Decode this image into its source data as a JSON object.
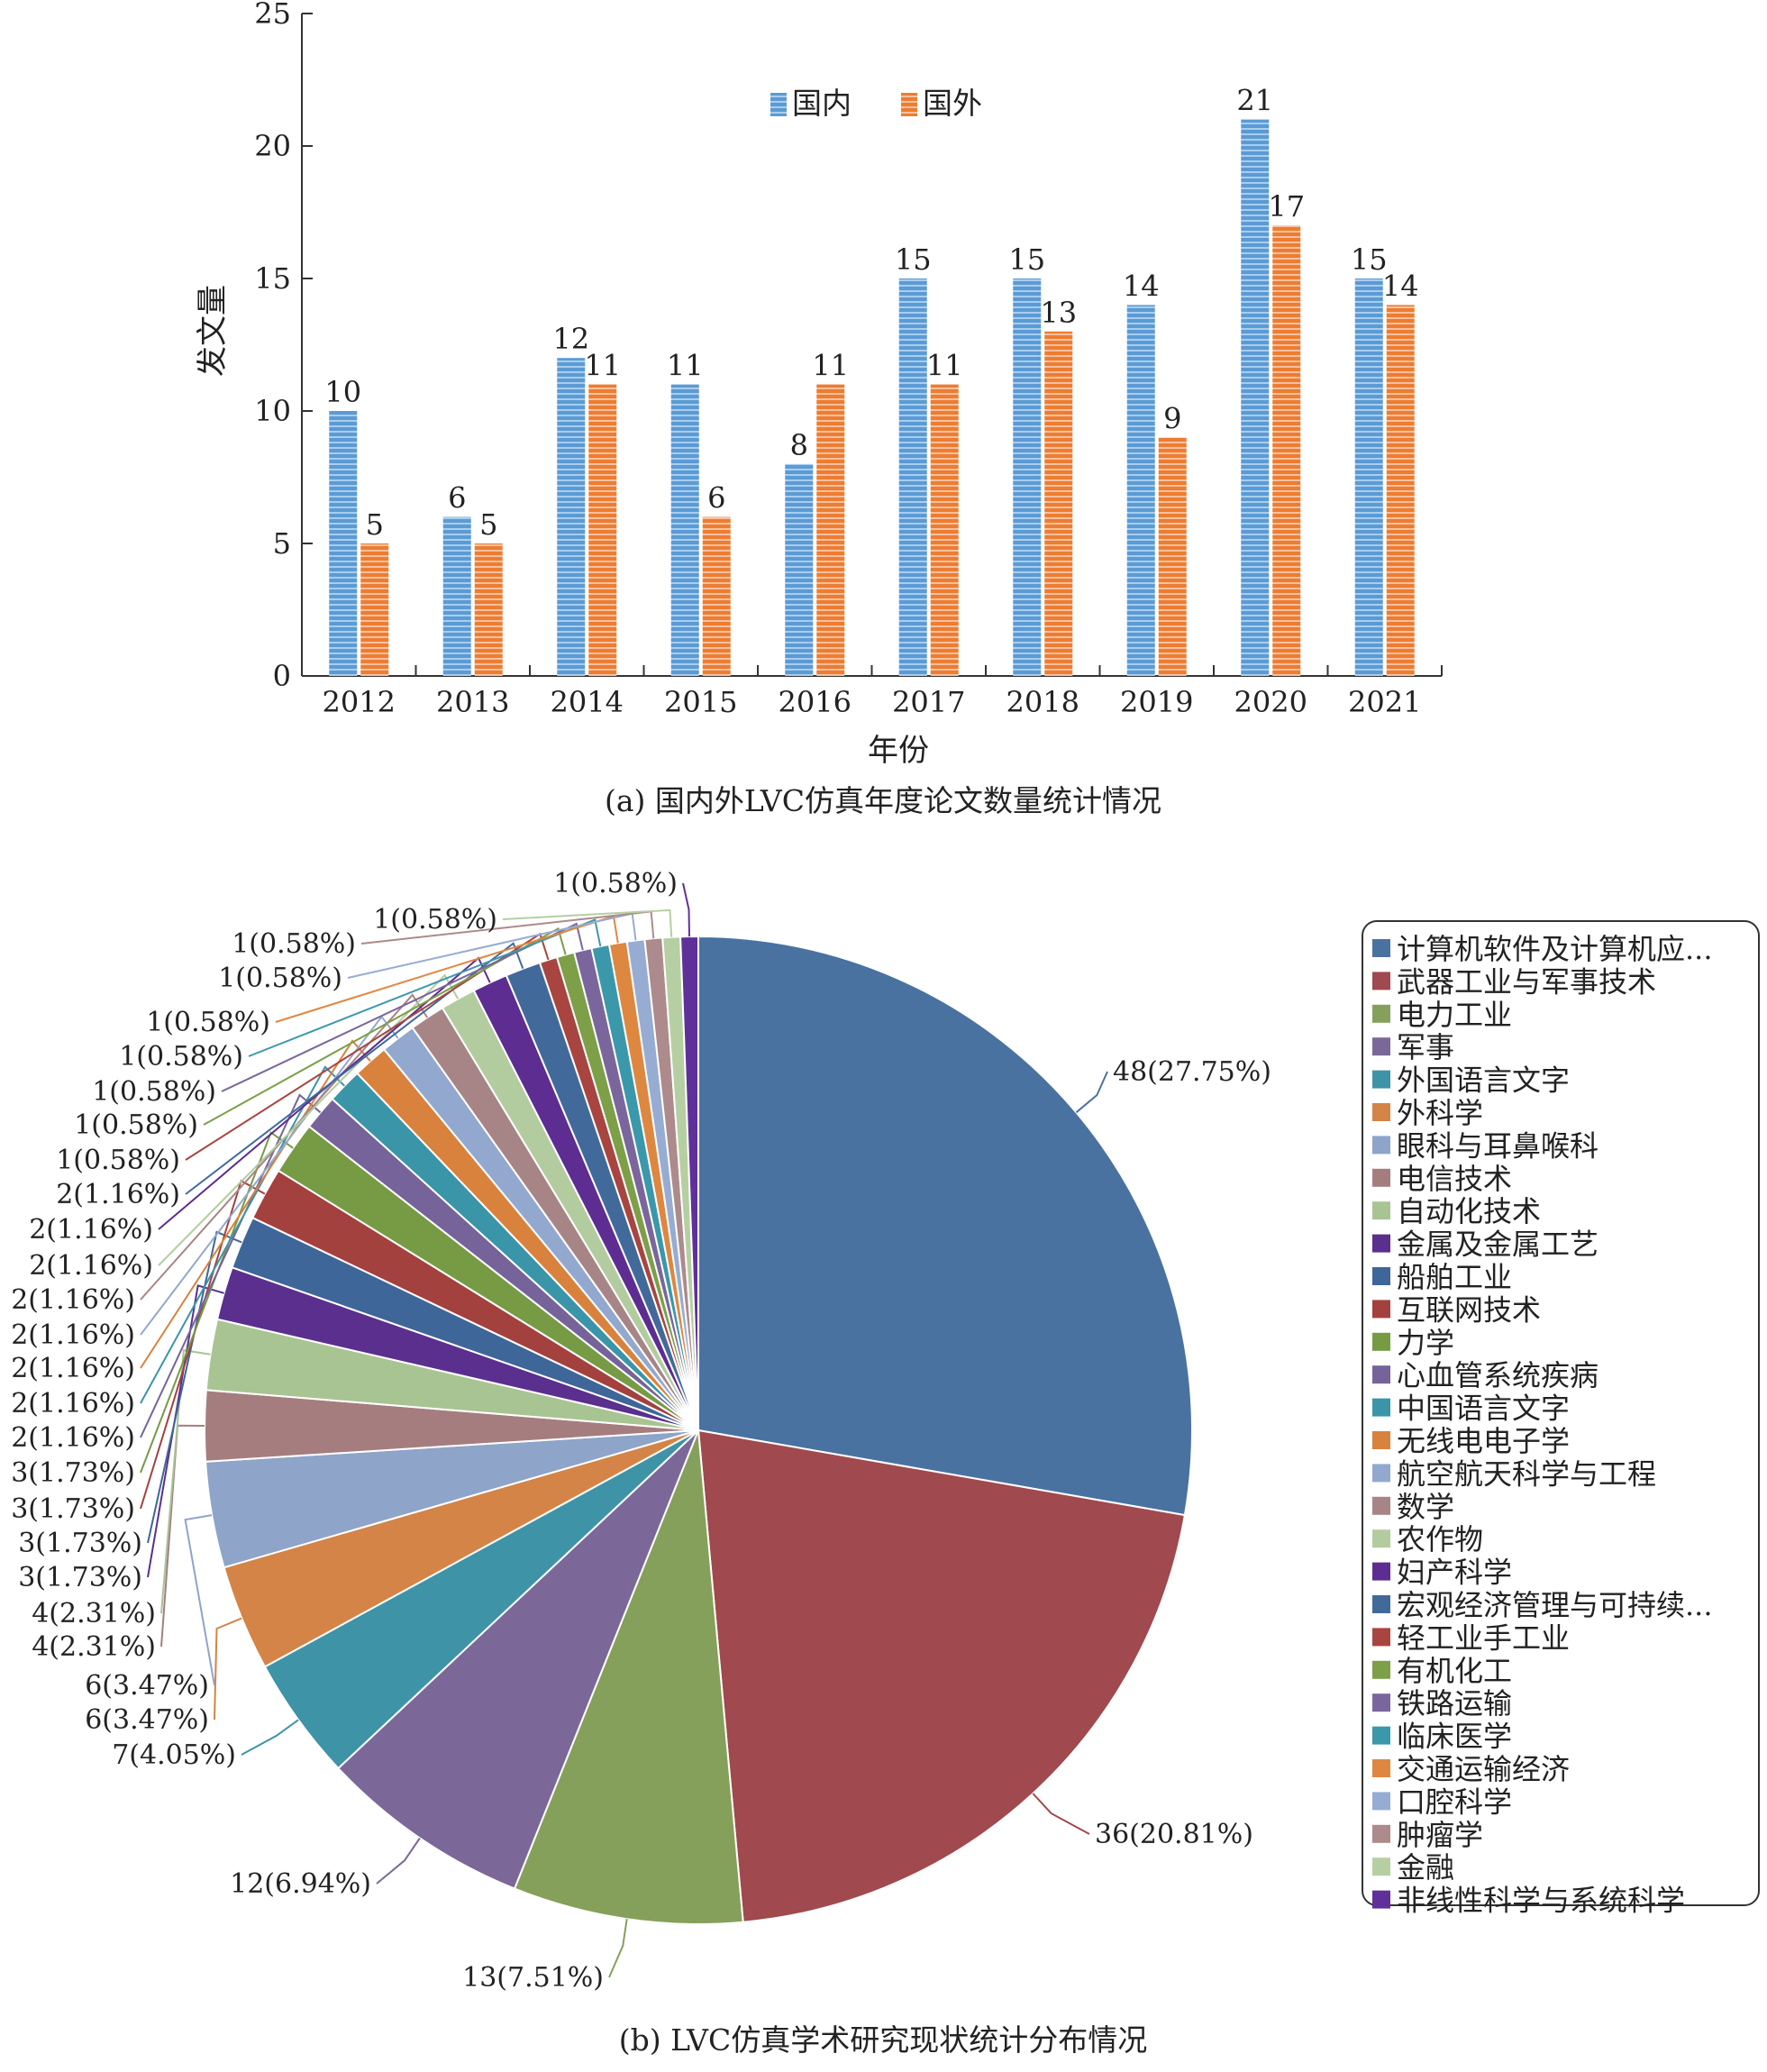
{
  "chart_data": [
    {
      "type": "bar",
      "caption": "(a) 国内外LVC仿真年度论文数量统计情况",
      "xlabel": "年份",
      "ylabel": "发文量",
      "ylim": [
        0,
        25
      ],
      "yticks": [
        0,
        5,
        10,
        15,
        20,
        25
      ],
      "categories": [
        "2012",
        "2013",
        "2014",
        "2015",
        "2016",
        "2017",
        "2018",
        "2019",
        "2020",
        "2021"
      ],
      "series": [
        {
          "name": "国内",
          "color": "#5b9bd5",
          "values": [
            10,
            6,
            12,
            11,
            8,
            15,
            15,
            14,
            21,
            15
          ]
        },
        {
          "name": "国外",
          "color": "#ed7d31",
          "values": [
            5,
            5,
            11,
            6,
            11,
            11,
            13,
            9,
            17,
            14
          ]
        }
      ],
      "legend_position": "top-center",
      "grid": false
    },
    {
      "type": "pie",
      "caption": "(b) LVC仿真学术研究现状统计分布情况",
      "legend_position": "right",
      "slices": [
        {
          "label": "计算机软件及计算机应...",
          "value": 48,
          "text": "48(27.75%)",
          "color": "#4a72a0"
        },
        {
          "label": "武器工业与军事技术",
          "value": 36,
          "text": "36(20.81%)",
          "color": "#a0494e"
        },
        {
          "label": "电力工业",
          "value": 13,
          "text": "13(7.51%)",
          "color": "#85a05a"
        },
        {
          "label": "军事",
          "value": 12,
          "text": "12(6.94%)",
          "color": "#7b6898"
        },
        {
          "label": "外国语言文字",
          "value": 7,
          "text": "7(4.05%)",
          "color": "#3f93a6"
        },
        {
          "label": "外科学",
          "value": 6,
          "text": "6(3.47%)",
          "color": "#d48446"
        },
        {
          "label": "眼科与耳鼻喉科",
          "value": 6,
          "text": "6(3.47%)",
          "color": "#8ea4c8"
        },
        {
          "label": "电信技术",
          "value": 4,
          "text": "4(2.31%)",
          "color": "#a67d7f"
        },
        {
          "label": "自动化技术",
          "value": 4,
          "text": "4(2.31%)",
          "color": "#a9c493"
        },
        {
          "label": "金属及金属工艺",
          "value": 3,
          "text": "3(1.73%)",
          "color": "#5a2f8e"
        },
        {
          "label": "船舶工业",
          "value": 3,
          "text": "3(1.73%)",
          "color": "#3e6698"
        },
        {
          "label": "互联网技术",
          "value": 3,
          "text": "3(1.73%)",
          "color": "#a3413f"
        },
        {
          "label": "力学",
          "value": 3,
          "text": "3(1.73%)",
          "color": "#779a45"
        },
        {
          "label": "心血管系统疾病",
          "value": 2,
          "text": "2(1.16%)",
          "color": "#76639a"
        },
        {
          "label": "中国语言文字",
          "value": 2,
          "text": "2(1.16%)",
          "color": "#3a95a8"
        },
        {
          "label": "无线电电子学",
          "value": 2,
          "text": "2(1.16%)",
          "color": "#d8823d"
        },
        {
          "label": "航空航天科学与工程",
          "value": 2,
          "text": "2(1.16%)",
          "color": "#93a8cf"
        },
        {
          "label": "数学",
          "value": 2,
          "text": "2(1.16%)",
          "color": "#a78586"
        },
        {
          "label": "农作物",
          "value": 2,
          "text": "2(1.16%)",
          "color": "#b3cc9f"
        },
        {
          "label": "妇产科学",
          "value": 2,
          "text": "2(1.16%)",
          "color": "#5d2d91"
        },
        {
          "label": "宏观经济管理与可持续...",
          "value": 2,
          "text": "2(1.16%)",
          "color": "#416a9b"
        },
        {
          "label": "轻工业手工业",
          "value": 1,
          "text": "1(0.58%)",
          "color": "#a84540"
        },
        {
          "label": "有机化工",
          "value": 1,
          "text": "1(0.58%)",
          "color": "#7c9f48"
        },
        {
          "label": "铁路运输",
          "value": 1,
          "text": "1(0.58%)",
          "color": "#7a669c"
        },
        {
          "label": "临床医学",
          "value": 1,
          "text": "1(0.58%)",
          "color": "#3b98ab"
        },
        {
          "label": "交通运输经济",
          "value": 1,
          "text": "1(0.58%)",
          "color": "#de8741"
        },
        {
          "label": "口腔科学",
          "value": 1,
          "text": "1(0.58%)",
          "color": "#97acd3"
        },
        {
          "label": "肿瘤学",
          "value": 1,
          "text": "1(0.58%)",
          "color": "#ad8a8b"
        },
        {
          "label": "金融",
          "value": 1,
          "text": "1(0.58%)",
          "color": "#b6cfa2"
        },
        {
          "label": "非线性科学与系统科学",
          "value": 1,
          "text": "1(0.58%)",
          "color": "#60309a"
        }
      ]
    }
  ]
}
